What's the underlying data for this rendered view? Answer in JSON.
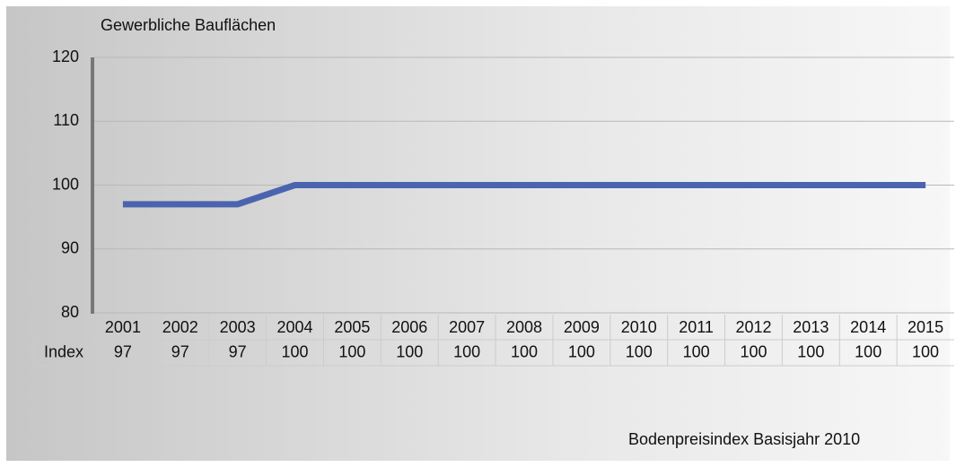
{
  "chart_data": {
    "type": "line",
    "title": "Gewerbliche Bauflächen",
    "categories": [
      "2001",
      "2002",
      "2003",
      "2004",
      "2005",
      "2006",
      "2007",
      "2008",
      "2009",
      "2010",
      "2011",
      "2012",
      "2013",
      "2014",
      "2015"
    ],
    "series": [
      {
        "name": "Index",
        "color": "#4a64b0",
        "values": [
          97,
          97,
          97,
          100,
          100,
          100,
          100,
          100,
          100,
          100,
          100,
          100,
          100,
          100,
          100
        ]
      }
    ],
    "ylim": [
      80,
      120
    ],
    "yticks": [
      80,
      90,
      100,
      110,
      120
    ],
    "grid": true,
    "note": "Bodenpreisindex Basisjahr 2010"
  }
}
